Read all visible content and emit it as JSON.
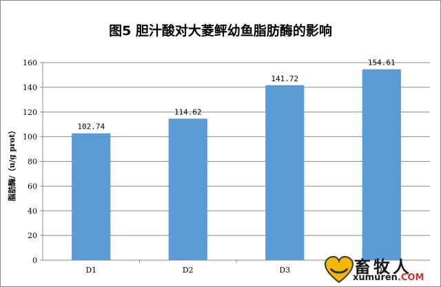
{
  "chart_data": {
    "type": "bar",
    "title": "图5  胆汁酸对大菱鲆幼鱼脂肪酶的影响",
    "xlabel": "",
    "ylabel": "脂肪酶/（u/g prot）",
    "categories": [
      "D1",
      "D2",
      "D3",
      "D4"
    ],
    "values": [
      102.74,
      114.62,
      141.72,
      154.61
    ],
    "value_labels": [
      "102.74",
      "114.62",
      "141.72",
      "154.61"
    ],
    "ylim": [
      0,
      160
    ],
    "yticks": [
      0,
      20,
      40,
      60,
      80,
      100,
      120,
      140,
      160
    ],
    "grid": true,
    "legend": "none",
    "bar_color": "#5B9BD5",
    "grid_color": "#878787"
  },
  "watermark": {
    "text_cn": "畜牧人",
    "text_en": "xumuren",
    "text_domain": ".COM",
    "accent_color": "#d6332a",
    "icon": "heart-logo-icon"
  }
}
